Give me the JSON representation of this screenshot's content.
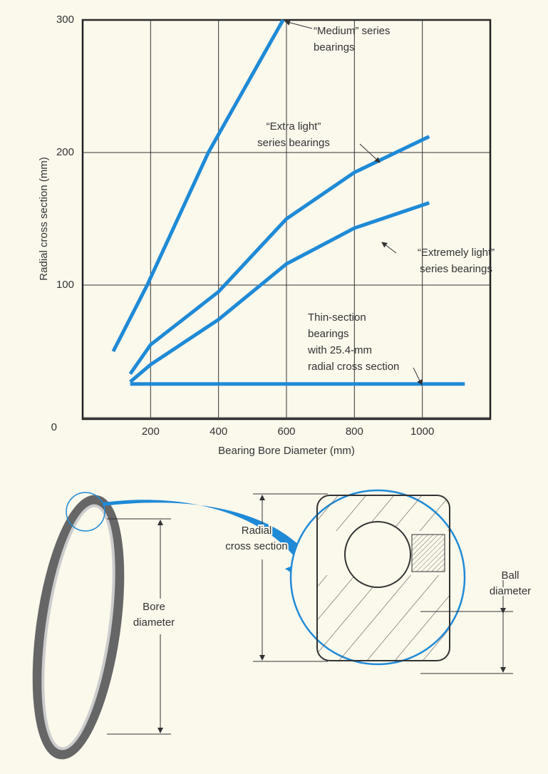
{
  "chart_data": {
    "type": "line",
    "x_label": "Bearing Bore Diameter (mm)",
    "y_label": "Radial cross section (mm)",
    "xlim": [
      0,
      1200
    ],
    "xticks": [
      200,
      400,
      600,
      800,
      1000
    ],
    "ylim": [
      0,
      300
    ],
    "yticks": [
      0,
      100,
      200,
      300
    ],
    "grid": true,
    "series": [
      {
        "color": "#1f8ad6",
        "x": [
          90,
          190,
          370,
          590
        ],
        "values": [
          50,
          100,
          200,
          300
        ]
      },
      {
        "color": "#1f8ad6",
        "x": [
          140,
          200,
          400,
          600,
          800,
          1020
        ],
        "values": [
          33,
          55,
          95,
          150,
          185,
          212
        ]
      },
      {
        "color": "#1f8ad6",
        "x": [
          140,
          200,
          400,
          600,
          800,
          1020
        ],
        "values": [
          27,
          40,
          74,
          116,
          143,
          162
        ]
      },
      {
        "color": "#1f8ad6",
        "x": [
          140,
          1125
        ],
        "values": [
          25.4,
          25.4
        ]
      }
    ],
    "annotations": [
      {
        "lines": [
          "“Medium” series",
          "bearings"
        ]
      },
      {
        "lines": [
          "“Extra light”",
          "series bearings"
        ]
      },
      {
        "lines": [
          "“Extremely light”",
          "series bearings"
        ]
      },
      {
        "lines": [
          "Thin-section",
          "bearings",
          "with 25.4-mm",
          "radial cross section"
        ]
      }
    ]
  },
  "diagram": {
    "labels": [
      {
        "lines": [
          "Bore",
          "diameter"
        ]
      },
      {
        "lines": [
          "Radial",
          "cross section"
        ]
      },
      {
        "lines": [
          "Ball",
          "diameter"
        ]
      }
    ]
  }
}
